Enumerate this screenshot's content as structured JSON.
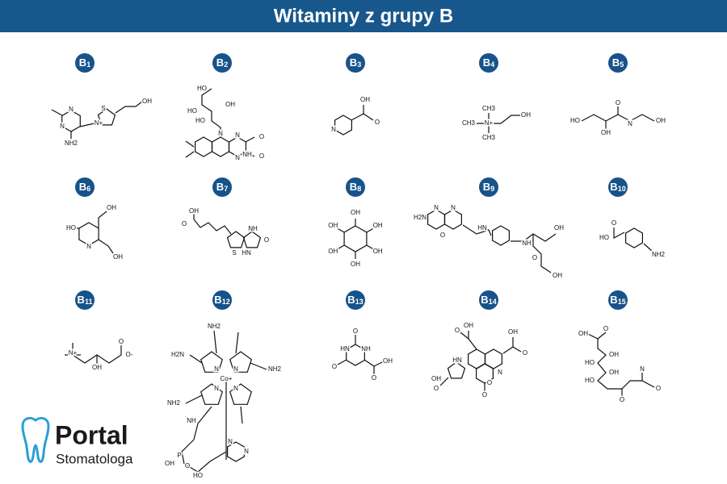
{
  "title": "Witaminy z grupy B",
  "vitamins": [
    {
      "letter": "B",
      "index": "1",
      "atoms": [
        "N",
        "N",
        "NH2",
        "S",
        "N+",
        "OH"
      ]
    },
    {
      "letter": "B",
      "index": "2",
      "atoms": [
        "HO",
        "HO",
        "HO",
        "OH",
        "N",
        "N",
        "N",
        "NH",
        "O",
        "O"
      ]
    },
    {
      "letter": "B",
      "index": "3",
      "atoms": [
        "N",
        "OH",
        "O"
      ]
    },
    {
      "letter": "B",
      "index": "4",
      "atoms": [
        "CH3",
        "CH3",
        "N+",
        "CH3",
        "OH"
      ]
    },
    {
      "letter": "B",
      "index": "5",
      "atoms": [
        "HO",
        "OH",
        "O",
        "N",
        "OH"
      ]
    },
    {
      "letter": "B",
      "index": "6",
      "atoms": [
        "HO",
        "OH",
        "OH",
        "N"
      ]
    },
    {
      "letter": "B",
      "index": "7",
      "atoms": [
        "OH",
        "O",
        "NH",
        "HN",
        "O",
        "S"
      ]
    },
    {
      "letter": "B",
      "index": "8",
      "atoms": [
        "OH",
        "OH",
        "OH",
        "OH",
        "OH",
        "OH"
      ]
    },
    {
      "letter": "B",
      "index": "9",
      "atoms": [
        "H2N",
        "N",
        "N",
        "HN",
        "O",
        "NH",
        "OH",
        "O",
        "OH"
      ]
    },
    {
      "letter": "B",
      "index": "10",
      "atoms": [
        "O",
        "HO",
        "NH2"
      ]
    },
    {
      "letter": "B",
      "index": "11",
      "atoms": [
        "N+",
        "OH",
        "O",
        "O-"
      ]
    },
    {
      "letter": "B",
      "index": "12",
      "atoms": [
        "Co+",
        "N",
        "N",
        "N",
        "N",
        "H2N",
        "NH2",
        "NH2",
        "NH2",
        "NH",
        "P",
        "O",
        "OH",
        "N",
        "N",
        "HO"
      ]
    },
    {
      "letter": "B",
      "index": "13",
      "atoms": [
        "O",
        "HN",
        "NH",
        "O",
        "OH",
        "O"
      ]
    },
    {
      "letter": "B",
      "index": "14",
      "atoms": [
        "OH",
        "O",
        "OH",
        "O",
        "N",
        "HN",
        "O",
        "O",
        "OH",
        "O"
      ]
    },
    {
      "letter": "B",
      "index": "15",
      "atoms": [
        "OH",
        "O",
        "OH",
        "HO",
        "OH",
        "HO",
        "O",
        "N",
        "O"
      ]
    }
  ],
  "logo": {
    "name": "Portal",
    "subtitle": "Stomatologa"
  }
}
